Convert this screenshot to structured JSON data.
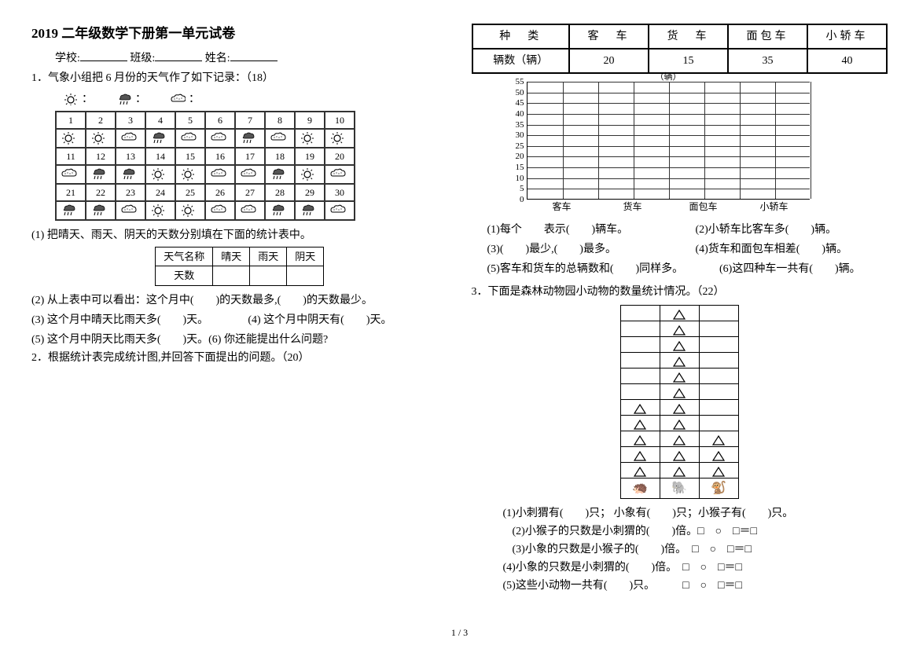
{
  "title": "2019 二年级数学下册第一单元试卷",
  "header": {
    "school": "学校:",
    "class": "班级:",
    "name": "姓名:"
  },
  "q1": {
    "prompt": "1．气象小组把 6 月份的天气作了如下记录：（18）",
    "legend": {
      "sunny": "：",
      "rainy": "：",
      "cloudy": "："
    },
    "days": [
      "1",
      "2",
      "3",
      "4",
      "5",
      "6",
      "7",
      "8",
      "9",
      "10",
      "11",
      "12",
      "13",
      "14",
      "15",
      "16",
      "17",
      "18",
      "19",
      "20",
      "21",
      "22",
      "23",
      "24",
      "25",
      "26",
      "27",
      "28",
      "29",
      "30"
    ],
    "weather": [
      "s",
      "s",
      "c",
      "r",
      "c",
      "c",
      "r",
      "c",
      "s",
      "s",
      "c",
      "r",
      "r",
      "s",
      "s",
      "c",
      "c",
      "r",
      "s",
      "c",
      "r",
      "r",
      "c",
      "s",
      "s",
      "c",
      "c",
      "r",
      "r",
      "c"
    ],
    "sub1": "(1) 把晴天、雨天、阴天的天数分别填在下面的统计表中。",
    "stat_headers": [
      "天气名称",
      "晴天",
      "雨天",
      "阴天"
    ],
    "stat_row": "天数",
    "sub2": "(2) 从上表中可以看出：这个月中(　　)的天数最多,(　　)的天数最少。",
    "sub3": "(3) 这个月中晴天比雨天多(　　)天。",
    "sub4": "(4) 这个月中阴天有(　　)天。",
    "sub5": "(5) 这个月中阴天比雨天多(　　)天。(6) 你还能提出什么问题?"
  },
  "q2": {
    "prompt": "2．根据统计表完成统计图,并回答下面提出的问题。（20）",
    "headers": [
      "种　类",
      "客　车",
      "货　车",
      "面包车",
      "小轿车"
    ],
    "row_label": "辆数（辆）",
    "values": [
      "20",
      "15",
      "35",
      "40"
    ],
    "chart": {
      "unit": "（辆）",
      "ymax": 55,
      "ystep": 5,
      "ylabels": [
        "55",
        "50",
        "45",
        "40",
        "35",
        "30",
        "25",
        "20",
        "15",
        "10",
        "5",
        "0"
      ],
      "xlabels": [
        "客车",
        "货车",
        "面包车",
        "小轿车"
      ],
      "vcols": 8
    },
    "subs": {
      "a": "(1)每个　　表示(　　)辆车。",
      "b": "(2)小轿车比客车多(　　)辆。",
      "c": "(3)(　　)最少,(　　)最多。",
      "d": "(4)货车和面包车相差(　　)辆。",
      "e": "(5)客车和货车的总辆数和(　　)同样多。",
      "f": "(6)这四种车一共有(　　)辆。"
    }
  },
  "q3": {
    "prompt": "3．下面是森林动物园小动物的数量统计情况。（22）",
    "pic": {
      "rows": 11,
      "cols": 3,
      "data": [
        [
          "",
          "t",
          ""
        ],
        [
          "",
          "t",
          ""
        ],
        [
          "",
          "t",
          ""
        ],
        [
          "",
          "t",
          ""
        ],
        [
          "",
          "t",
          ""
        ],
        [
          "",
          "t",
          ""
        ],
        [
          "t",
          "t",
          ""
        ],
        [
          "t",
          "t",
          ""
        ],
        [
          "t",
          "t",
          "t"
        ],
        [
          "t",
          "t",
          "t"
        ],
        [
          "t",
          "t",
          "t"
        ]
      ],
      "base": [
        "🦔",
        "🐘",
        "🐒"
      ]
    },
    "subs": {
      "a": "(1)小刺猬有(　　)只； 小象有(　　)只；小猴子有(　　)只。",
      "b": "(2)小猴子的只数是小刺猬的(　　)倍。□　○　□＝□",
      "c": "(3)小象的只数是小猴子的(　　)倍。　□　○　□＝□",
      "d": "(4)小象的只数是小刺猬的(　　)倍。　□　○　□＝□",
      "e": "(5)这些小动物一共有(　　)只。　　　□　○　□＝□"
    }
  },
  "footer": "1 / 3"
}
